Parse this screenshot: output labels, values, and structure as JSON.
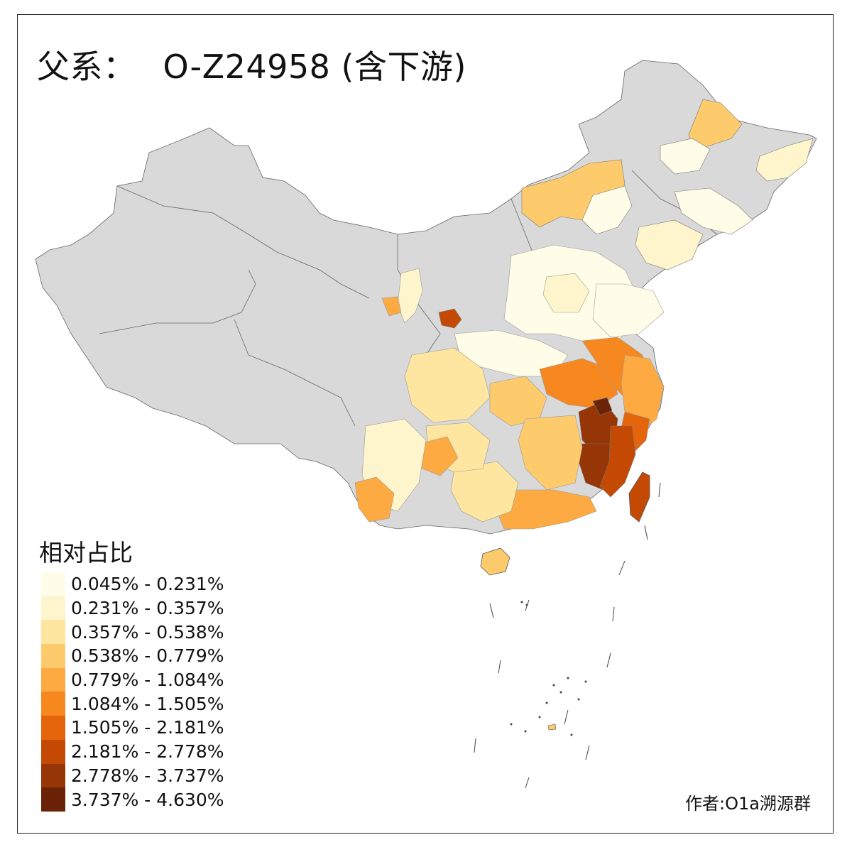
{
  "title": {
    "prefix": "父系：",
    "haplogroup": "O-Z24958 (含下游)"
  },
  "legend": {
    "title": "相对占比",
    "classes": [
      {
        "label": "0.045% - 0.231%",
        "color": "#fffde8"
      },
      {
        "label": "0.231% - 0.357%",
        "color": "#fff5cc"
      },
      {
        "label": "0.357% - 0.538%",
        "color": "#fee6a0"
      },
      {
        "label": "0.538% - 0.779%",
        "color": "#fecb6c"
      },
      {
        "label": "0.779% - 1.084%",
        "color": "#fdaa42"
      },
      {
        "label": "1.084% - 1.505%",
        "color": "#f7881f"
      },
      {
        "label": "1.505% - 2.181%",
        "color": "#e4650c"
      },
      {
        "label": "2.181% - 2.778%",
        "color": "#c44a04"
      },
      {
        "label": "2.778% - 3.737%",
        "color": "#963505"
      },
      {
        "label": "3.737% - 4.630%",
        "color": "#6a2306"
      }
    ]
  },
  "no_data_color": "#d9d9d9",
  "credit": "作者:O1a溯源群"
}
